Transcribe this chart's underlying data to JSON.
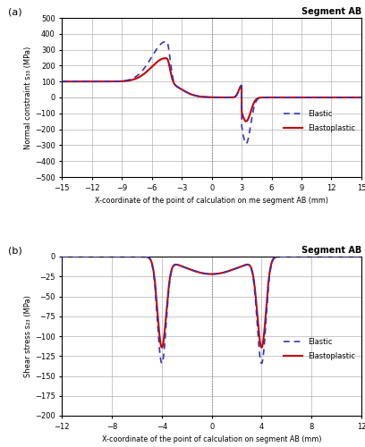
{
  "panel_a": {
    "title": "Segment AB",
    "xlabel": "X-coordinate of the point of calculation on me segment AB (mm)",
    "ylabel": "Normal constraint s₃₃ (MPa)",
    "xlim": [
      -15,
      15
    ],
    "ylim": [
      -500,
      500
    ],
    "xticks": [
      -15,
      -12,
      -9,
      -6,
      -3,
      0,
      3,
      6,
      9,
      12,
      15
    ],
    "yticks": [
      -500,
      -400,
      -300,
      -200,
      -100,
      0,
      100,
      200,
      300,
      400,
      500
    ],
    "elastic_color": "#3333bb",
    "elastoplastic_color": "#cc0000",
    "legend_elastic": "Elastic",
    "legend_elastoplastic": "Elastoplastic"
  },
  "panel_b": {
    "title": "Segment AB",
    "xlabel": "X-coordinate of the point of calculation on segment AB (mm)",
    "ylabel": "Shear stress s₂₃ (MPa)",
    "xlim": [
      -12,
      12
    ],
    "ylim": [
      -200,
      0
    ],
    "xticks": [
      -12,
      -8,
      -4,
      0,
      4,
      8,
      12
    ],
    "yticks": [
      0,
      -25,
      -50,
      -75,
      -100,
      -125,
      -150,
      -175,
      -200
    ],
    "elastic_color": "#3333bb",
    "elastoplastic_color": "#cc0000",
    "legend_elastic": "Elastic",
    "legend_elastoplastic": "Elastoplastic"
  }
}
